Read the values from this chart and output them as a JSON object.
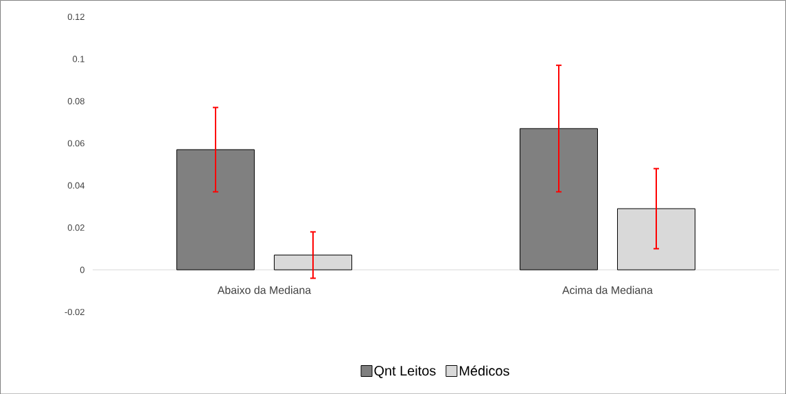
{
  "chart_data": {
    "type": "bar",
    "categories": [
      "Abaixo da Mediana",
      "Acima da Mediana"
    ],
    "series": [
      {
        "name": "Qnt Leitos",
        "color": "#808080",
        "values": [
          0.057,
          0.067
        ],
        "errors": [
          0.02,
          0.03
        ]
      },
      {
        "name": "Médicos",
        "color": "#d9d9d9",
        "values": [
          0.007,
          0.029
        ],
        "errors": [
          0.011,
          0.019
        ]
      }
    ],
    "ylim": [
      -0.02,
      0.12
    ],
    "yticks": [
      -0.02,
      0,
      0.02,
      0.04,
      0.06,
      0.08,
      0.1,
      0.12
    ],
    "grid": false,
    "legend": "bottom"
  }
}
